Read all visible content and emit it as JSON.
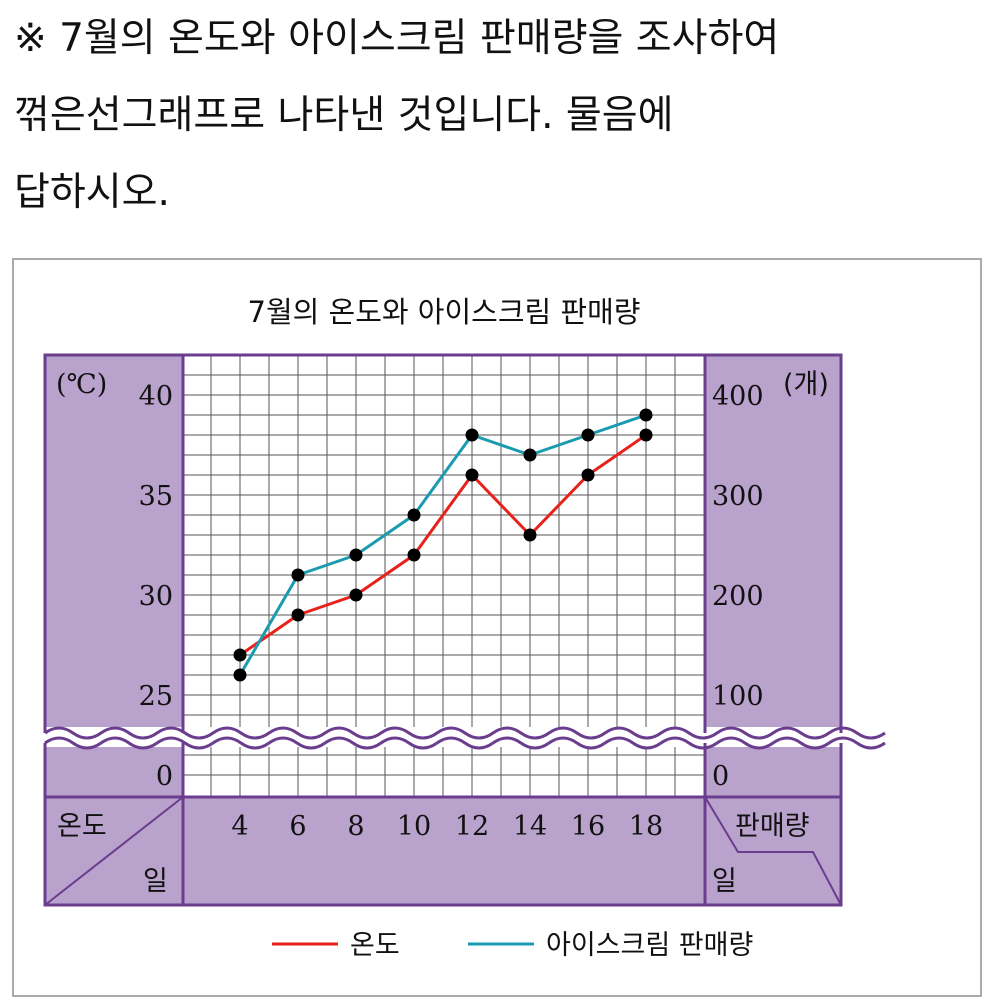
{
  "question": {
    "line1": "※ 7월의 온도와 아이스크림 판매량을 조사하여",
    "line2": "꺾은선그래프로 나타낸 것입니다. 물음에",
    "line3": "답하시오."
  },
  "colors": {
    "panel": "#b9a2cc",
    "border": "#6a3d8e",
    "temperature_line": "#e8211a",
    "sales_line": "#1a9bb0",
    "grid": "#555555",
    "marker": "#000000"
  },
  "chart_data": {
    "type": "line",
    "title": "7월의 온도와 아이스크림 판매량",
    "x": [
      4,
      6,
      8,
      10,
      12,
      14,
      16,
      18
    ],
    "x_tick_labels": [
      "4",
      "6",
      "8",
      "10",
      "12",
      "14",
      "16",
      "18"
    ],
    "corner_left": {
      "top": "온도",
      "bottom": "일"
    },
    "corner_right": {
      "top": "판매량",
      "bottom": "일"
    },
    "y_left": {
      "unit": "(℃)",
      "ticks": [
        25,
        30,
        35,
        40
      ],
      "zero": "0",
      "ylim": [
        25,
        40
      ],
      "broken_axis": true
    },
    "y_right": {
      "unit": "(개)",
      "ticks": [
        100,
        200,
        300,
        400
      ],
      "zero": "0",
      "ylim": [
        100,
        400
      ],
      "broken_axis": true
    },
    "grid": true,
    "legend_position": "bottom",
    "series": [
      {
        "name": "온도",
        "axis": "left",
        "values": [
          27,
          29,
          30,
          32,
          36,
          33,
          36,
          38
        ]
      },
      {
        "name": "아이스크림 판매량",
        "axis": "right",
        "values": [
          120,
          220,
          240,
          280,
          360,
          340,
          360,
          380
        ]
      }
    ]
  }
}
